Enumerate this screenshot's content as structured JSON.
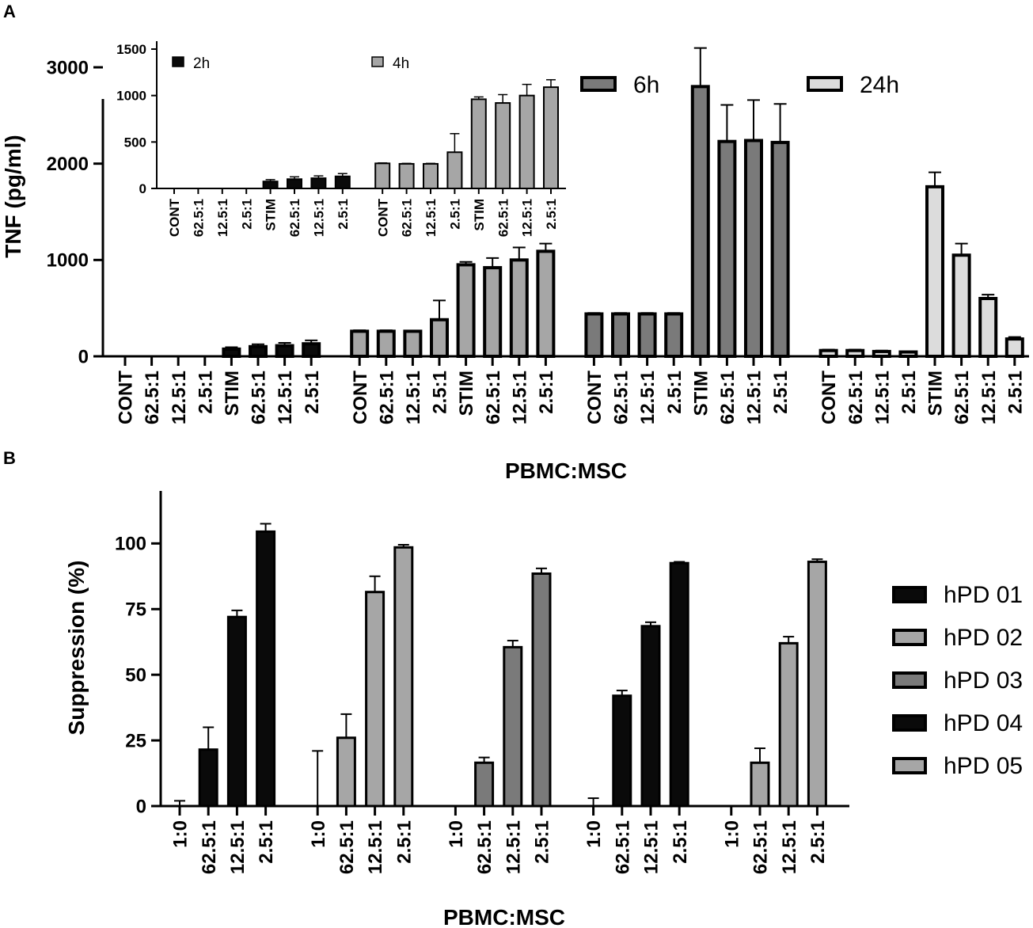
{
  "panels": {
    "a": {
      "letter": "A"
    },
    "b": {
      "letter": "B"
    }
  },
  "chart_data": [
    {
      "id": "A-main",
      "type": "bar",
      "ylabel": "TNF (pg/ml)",
      "xlabel": "PBMC:MSC",
      "ylim": [
        0,
        3000
      ],
      "yticks": [
        0,
        1000,
        2000,
        3000
      ],
      "categories": [
        "CONT",
        "62.5:1",
        "12.5:1",
        "2.5:1",
        "STIM",
        "62.5:1",
        "12.5:1",
        "2.5:1"
      ],
      "series": [
        {
          "name": "2h",
          "color": "#0a0a0a",
          "values": [
            0,
            0,
            0,
            0,
            75,
            100,
            110,
            130
          ],
          "errors": [
            0,
            0,
            0,
            0,
            20,
            25,
            30,
            35
          ]
        },
        {
          "name": "4h",
          "color": "#a6a6a6",
          "values": [
            260,
            260,
            260,
            380,
            950,
            920,
            1000,
            1090
          ],
          "errors": [
            10,
            10,
            5,
            200,
            30,
            100,
            130,
            80
          ]
        },
        {
          "name": "6h",
          "color": "#7a7a7a",
          "values": [
            440,
            440,
            440,
            440,
            2800,
            2230,
            2240,
            2220
          ],
          "errors": [
            10,
            10,
            10,
            10,
            400,
            380,
            420,
            400
          ]
        },
        {
          "name": "24h",
          "color": "#dcdcdc",
          "values": [
            60,
            60,
            50,
            45,
            1760,
            1050,
            600,
            180
          ],
          "errors": [
            10,
            10,
            10,
            5,
            150,
            120,
            40,
            20
          ]
        }
      ],
      "legend": "top-right"
    },
    {
      "id": "A-inset",
      "type": "bar",
      "ylim": [
        0,
        1500
      ],
      "yticks": [
        0,
        500,
        1000,
        1500
      ],
      "categories": [
        "CONT",
        "62.5:1",
        "12.5:1",
        "2.5:1",
        "STIM",
        "62.5:1",
        "12.5:1",
        "2.5:1"
      ],
      "series": [
        {
          "name": "2h",
          "color": "#0a0a0a",
          "values": [
            0,
            0,
            0,
            0,
            75,
            100,
            110,
            130
          ],
          "errors": [
            0,
            0,
            0,
            0,
            20,
            25,
            25,
            30
          ]
        },
        {
          "name": "4h",
          "color": "#a6a6a6",
          "values": [
            270,
            265,
            265,
            390,
            960,
            920,
            1000,
            1090
          ],
          "errors": [
            5,
            5,
            5,
            200,
            25,
            90,
            120,
            80
          ]
        }
      ],
      "legend": "top"
    },
    {
      "id": "B",
      "type": "bar",
      "ylabel": "Suppression (%)",
      "xlabel": "PBMC:MSC",
      "ylim": [
        0,
        120
      ],
      "yticks": [
        0,
        25,
        50,
        75,
        100
      ],
      "categories": [
        "1:0",
        "62.5:1",
        "12.5:1",
        "2.5:1"
      ],
      "series": [
        {
          "name": "hPD 01",
          "color": "#0a0a0a",
          "values": [
            0,
            21.5,
            72,
            104.5
          ],
          "errors": [
            2,
            8.5,
            2.5,
            3
          ]
        },
        {
          "name": "hPD 02",
          "color": "#a6a6a6",
          "values": [
            0,
            26,
            81.5,
            98.5
          ],
          "errors": [
            21,
            9,
            6,
            1
          ]
        },
        {
          "name": "hPD 03",
          "color": "#7a7a7a",
          "values": [
            0,
            16.5,
            60.5,
            88.5
          ],
          "errors": [
            0,
            2,
            2.5,
            2
          ]
        },
        {
          "name": "hPD 04",
          "color": "#0a0a0a",
          "values": [
            0,
            42,
            68.5,
            92.5
          ],
          "errors": [
            3,
            2,
            1.5,
            0.5
          ]
        },
        {
          "name": "hPD 05",
          "color": "#a6a6a6",
          "values": [
            0,
            16.5,
            62,
            93
          ],
          "errors": [
            0,
            5.5,
            2.5,
            1
          ]
        }
      ],
      "legend": "right"
    }
  ]
}
